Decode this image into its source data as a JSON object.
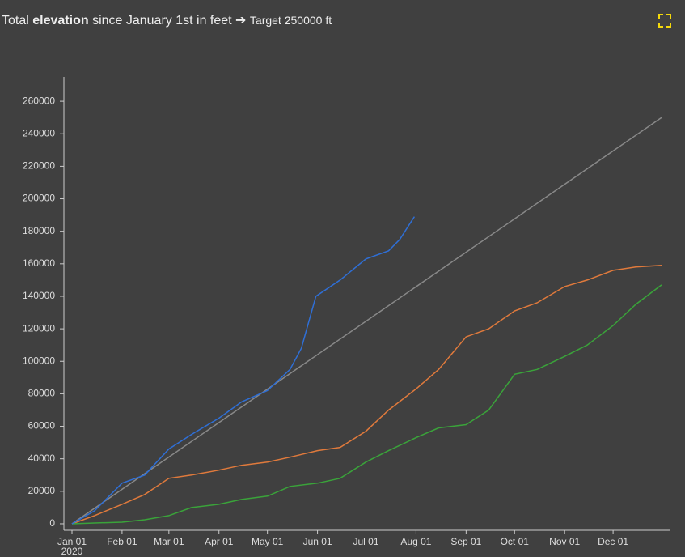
{
  "chart_data": {
    "type": "line",
    "title": {
      "prefix": "Total",
      "emphasis": "elevation",
      "suffix": "since January 1st in feet ➔",
      "target": "Target 250000 ft"
    },
    "x_sublabel": "2020",
    "xlim": [
      "2019-12-27",
      "2021-01-05"
    ],
    "xticks": [
      {
        "value": "2020-01-01",
        "label": "Jan 01"
      },
      {
        "value": "2020-02-01",
        "label": "Feb 01"
      },
      {
        "value": "2020-03-01",
        "label": "Mar 01"
      },
      {
        "value": "2020-04-01",
        "label": "Apr 01"
      },
      {
        "value": "2020-05-01",
        "label": "May 01"
      },
      {
        "value": "2020-06-01",
        "label": "Jun 01"
      },
      {
        "value": "2020-07-01",
        "label": "Jul 01"
      },
      {
        "value": "2020-08-01",
        "label": "Aug 01"
      },
      {
        "value": "2020-09-01",
        "label": "Sep 01"
      },
      {
        "value": "2020-10-01",
        "label": "Oct 01"
      },
      {
        "value": "2020-11-01",
        "label": "Nov 01"
      },
      {
        "value": "2020-12-01",
        "label": "Dec 01"
      }
    ],
    "ylim": [
      -4000,
      275000
    ],
    "yticks": [
      0,
      20000,
      40000,
      60000,
      80000,
      100000,
      120000,
      140000,
      160000,
      180000,
      200000,
      220000,
      240000,
      260000
    ],
    "series": [
      {
        "color": "#888888",
        "x": [
          "2020-01-01",
          "2020-12-31"
        ],
        "values": [
          0,
          250000
        ]
      },
      {
        "color": "#e07a3c",
        "x": [
          "2020-01-01",
          "2020-01-15",
          "2020-02-01",
          "2020-02-15",
          "2020-03-01",
          "2020-03-15",
          "2020-04-01",
          "2020-04-15",
          "2020-05-01",
          "2020-05-15",
          "2020-06-01",
          "2020-06-15",
          "2020-07-01",
          "2020-07-15",
          "2020-08-01",
          "2020-08-15",
          "2020-09-01",
          "2020-09-15",
          "2020-10-01",
          "2020-10-15",
          "2020-11-01",
          "2020-11-15",
          "2020-12-01",
          "2020-12-15",
          "2020-12-31"
        ],
        "values": [
          0,
          5000,
          12000,
          18000,
          28000,
          30000,
          33000,
          36000,
          38000,
          41000,
          45000,
          47000,
          57000,
          70000,
          83000,
          95000,
          115000,
          120000,
          131000,
          136000,
          146000,
          150000,
          156000,
          158000,
          159000
        ]
      },
      {
        "color": "#3aa33a",
        "x": [
          "2020-01-01",
          "2020-01-15",
          "2020-02-01",
          "2020-02-15",
          "2020-03-01",
          "2020-03-15",
          "2020-04-01",
          "2020-04-15",
          "2020-05-01",
          "2020-05-15",
          "2020-06-01",
          "2020-06-15",
          "2020-07-01",
          "2020-07-15",
          "2020-08-01",
          "2020-08-15",
          "2020-09-01",
          "2020-09-15",
          "2020-10-01",
          "2020-10-15",
          "2020-11-01",
          "2020-11-15",
          "2020-12-01",
          "2020-12-15",
          "2020-12-31"
        ],
        "values": [
          0,
          500,
          1000,
          2500,
          5000,
          10000,
          12000,
          15000,
          17000,
          23000,
          25000,
          28000,
          38000,
          45000,
          53000,
          59000,
          61000,
          70000,
          92000,
          95000,
          103000,
          110000,
          122000,
          135000,
          147000
        ]
      },
      {
        "color": "#2f6fd6",
        "x": [
          "2020-01-01",
          "2020-01-15",
          "2020-02-01",
          "2020-02-15",
          "2020-03-01",
          "2020-03-15",
          "2020-04-01",
          "2020-04-15",
          "2020-05-01",
          "2020-05-15",
          "2020-05-22",
          "2020-05-31",
          "2020-06-15",
          "2020-07-01",
          "2020-07-15",
          "2020-07-22",
          "2020-07-31"
        ],
        "values": [
          0,
          8000,
          25000,
          30000,
          46000,
          55000,
          65000,
          75000,
          82000,
          95000,
          108000,
          140000,
          150000,
          163000,
          168000,
          175000,
          189000
        ]
      }
    ]
  }
}
